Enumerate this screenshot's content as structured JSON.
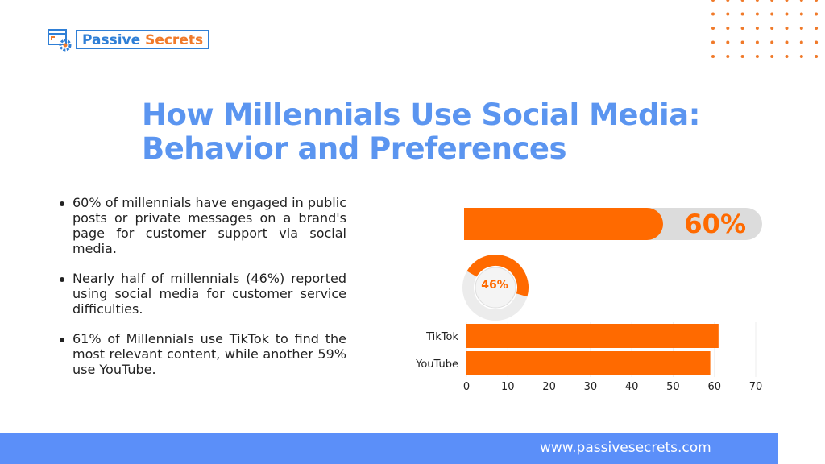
{
  "logo": {
    "word1": "Passive",
    "word2": "Secrets"
  },
  "title": {
    "line1": "How Millennials Use Social Media:",
    "line2": "Behavior and Preferences"
  },
  "bullets": [
    "60% of millennials have engaged in public posts or private messages on a brand's page for customer support via social media.",
    "Nearly half of millennials (46%) reported using social media for customer service difficulties.",
    "61% of Millennials use TikTok to find the most relevant content, while another 59% use YouTube."
  ],
  "progress": {
    "value": 60,
    "label": "60%"
  },
  "donut": {
    "value": 46,
    "label": "46%"
  },
  "colors": {
    "accent": "#ff6a00",
    "title": "#5b95f0",
    "footer": "#5b8ff9"
  },
  "chart_data": {
    "type": "bar",
    "orientation": "horizontal",
    "categories": [
      "TikTok",
      "YouTube"
    ],
    "values": [
      61,
      59
    ],
    "xlim": [
      0,
      70
    ],
    "xticks": [
      "0",
      "10",
      "20",
      "30",
      "40",
      "50",
      "60",
      "70"
    ],
    "grid": true
  },
  "footer": {
    "url": "www.passivesecrets.com"
  }
}
